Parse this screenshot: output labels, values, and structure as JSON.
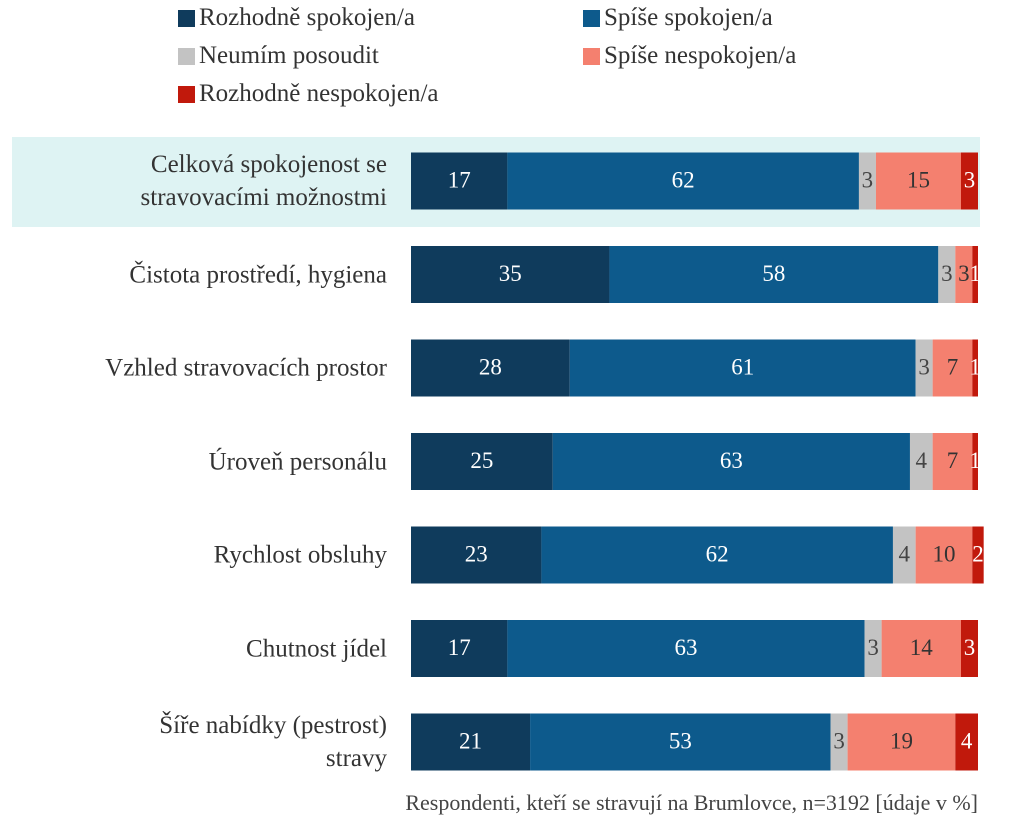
{
  "chart_data": {
    "type": "stacked_barh",
    "categories": [
      "Celková spokojenost se\nstravovacími možnostmi",
      "Čistota prostředí, hygiena",
      "Vzhled stravovacích prostor",
      "Úroveň personálu",
      "Rychlost obsluhy",
      "Chutnost jídel",
      "Šíře nabídky (pestrost)\nstravy"
    ],
    "series": [
      {
        "name": "Rozhodně spokojen/a",
        "color": "#0f3b5c",
        "label_color": "#ffffff",
        "values": [
          17,
          35,
          28,
          25,
          23,
          17,
          21
        ]
      },
      {
        "name": "Spíše spokojen/a",
        "color": "#0d5a8c",
        "label_color": "#ffffff",
        "values": [
          62,
          58,
          61,
          63,
          62,
          63,
          53
        ]
      },
      {
        "name": "Neumím posoudit",
        "color": "#c3c3c3",
        "label_color": "#444444",
        "values": [
          3,
          3,
          3,
          4,
          4,
          3,
          3
        ]
      },
      {
        "name": "Spíše nespokojen/a",
        "color": "#f4806f",
        "label_color": "#333333",
        "values": [
          15,
          3,
          7,
          7,
          10,
          14,
          19
        ]
      },
      {
        "name": "Rozhodně nespokojen/a",
        "color": "#c1190c",
        "label_color": "#ffffff",
        "values": [
          3,
          1,
          1,
          1,
          2,
          3,
          4
        ]
      }
    ],
    "xlim": [
      0,
      100
    ],
    "footnote": "Respondenti, kteří se stravují na Brumlovce, n=3192 [údaje v %]"
  }
}
